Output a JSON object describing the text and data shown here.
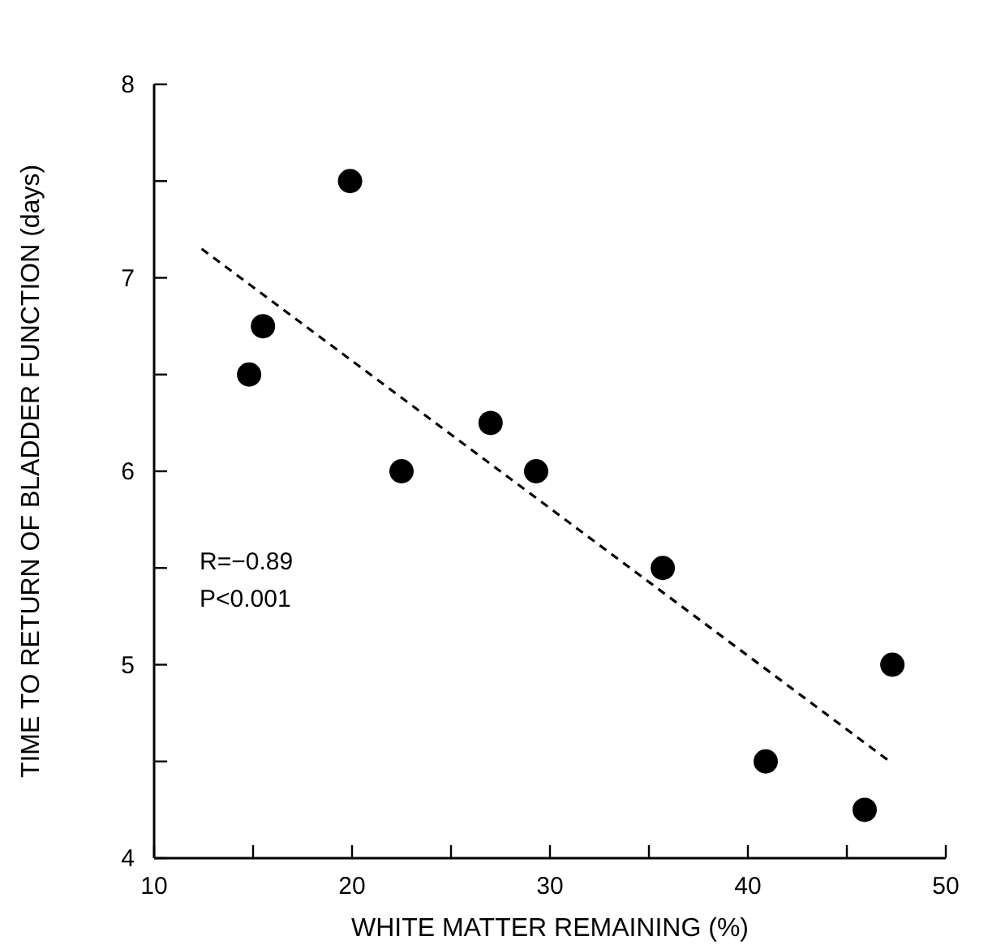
{
  "chart_data": {
    "type": "scatter",
    "xlabel": "WHITE MATTER REMAINING (%)",
    "ylabel": "TIME TO RETURN OF BLADDER FUNCTION (days)",
    "xlim": [
      10,
      50
    ],
    "ylim": [
      4,
      8
    ],
    "xticks": [
      10,
      {
        "value": 15,
        "label": null
      },
      20,
      {
        "value": 25,
        "label": null
      },
      30,
      {
        "value": 35,
        "label": null
      },
      40,
      {
        "value": 45,
        "label": null
      },
      50
    ],
    "yticks": [
      4,
      {
        "value": 4.5,
        "label": null
      },
      5,
      {
        "value": 5.5,
        "label": null
      },
      6,
      {
        "value": 6.5,
        "label": null
      },
      7,
      {
        "value": 7.5,
        "label": null
      },
      8
    ],
    "grid": false,
    "annotations": [
      "R=−0.89",
      "P<0.001"
    ],
    "series": [
      {
        "marker": "circle",
        "color": "#000000",
        "x": [
          14.8,
          15.5,
          19.9,
          22.5,
          27.0,
          29.3,
          35.7,
          40.9,
          45.9,
          47.3
        ],
        "values": [
          6.5,
          6.75,
          7.5,
          6.0,
          6.25,
          6.0,
          5.5,
          4.5,
          4.25,
          5.0
        ]
      },
      {
        "type": "line",
        "color": "#000000",
        "line_style": "dashed",
        "x": [
          12.4,
          47.3
        ],
        "values": [
          7.15,
          4.49
        ]
      }
    ]
  }
}
